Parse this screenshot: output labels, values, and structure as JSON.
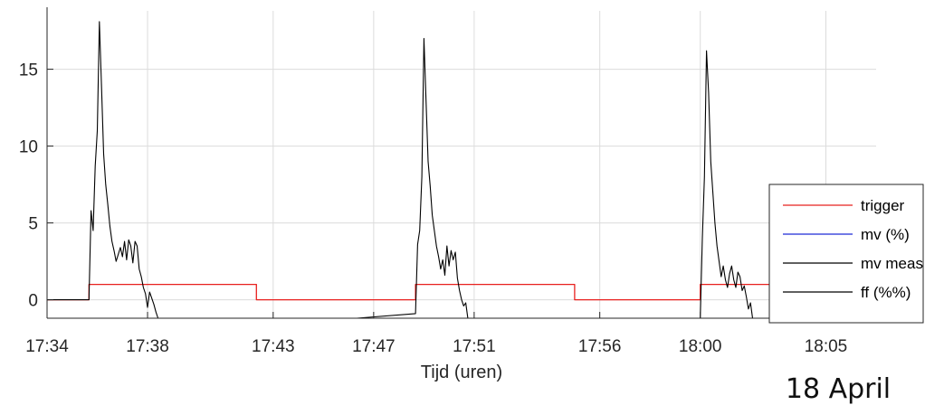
{
  "chart_data": {
    "type": "line",
    "title": "",
    "xlabel": "Tijd (uren)",
    "ylabel": "",
    "annotation": "18 April",
    "x_unit": "time HH:MM",
    "xlim": [
      "17:34",
      "18:07"
    ],
    "ylim": [
      -1.2,
      18.8
    ],
    "x_ticks": [
      "17:34",
      "17:38",
      "17:43",
      "17:47",
      "17:51",
      "17:56",
      "18:00",
      "18:05"
    ],
    "y_ticks": [
      0,
      5,
      10,
      15
    ],
    "grid": true,
    "legend_position": "right",
    "colors": {
      "trigger": "#e8201e",
      "mv": "#1f2bd8",
      "mv_meas": "#000000",
      "ff": "#000000"
    },
    "series": [
      {
        "name": "trigger",
        "points": [
          [
            "17:34",
            0
          ],
          [
            "17:35:40",
            0
          ],
          [
            "17:35:40",
            1
          ],
          [
            "17:42:20",
            1
          ],
          [
            "17:42:20",
            0
          ],
          [
            "17:48:40",
            0
          ],
          [
            "17:48:40",
            1
          ],
          [
            "17:55:00",
            1
          ],
          [
            "17:55:00",
            0
          ],
          [
            "18:00:00",
            0
          ],
          [
            "18:00:00",
            1
          ],
          [
            "18:07",
            1
          ]
        ]
      },
      {
        "name": "mv (%)",
        "points": []
      },
      {
        "name": "mv meas",
        "points": [
          [
            "17:34",
            0
          ],
          [
            "17:35:40",
            0
          ],
          [
            "17:35:45",
            5.8
          ],
          [
            "17:35:50",
            4.5
          ],
          [
            "17:35:55",
            8.7
          ],
          [
            "17:36:00",
            11.0
          ],
          [
            "17:36:05",
            18.1
          ],
          [
            "17:36:10",
            14.0
          ],
          [
            "17:36:15",
            9.5
          ],
          [
            "17:36:20",
            7.5
          ],
          [
            "17:36:25",
            6.2
          ],
          [
            "17:36:30",
            4.8
          ],
          [
            "17:36:35",
            3.8
          ],
          [
            "17:36:40",
            3.2
          ],
          [
            "17:36:45",
            2.5
          ],
          [
            "17:36:55",
            3.4
          ],
          [
            "17:37:00",
            2.8
          ],
          [
            "17:37:05",
            3.8
          ],
          [
            "17:37:10",
            2.6
          ],
          [
            "17:37:15",
            3.9
          ],
          [
            "17:37:20",
            3.5
          ],
          [
            "17:37:25",
            2.4
          ],
          [
            "17:37:30",
            3.8
          ],
          [
            "17:37:35",
            3.5
          ],
          [
            "17:37:40",
            2.0
          ],
          [
            "17:37:45",
            1.5
          ],
          [
            "17:37:50",
            0.8
          ],
          [
            "17:37:55",
            0.4
          ],
          [
            "17:38:00",
            -0.5
          ],
          [
            "17:38:05",
            0.5
          ],
          [
            "17:38:10",
            0.1
          ],
          [
            "17:38:15",
            -0.3
          ],
          [
            "17:38:20",
            -0.8
          ],
          [
            "17:38:25",
            -1.2
          ]
        ]
      },
      {
        "name": "ff (%%)",
        "points": [
          [
            "17:46:20",
            -1.2
          ],
          [
            "17:48:40",
            -0.9
          ],
          [
            "17:48:45",
            3.6
          ],
          [
            "17:48:50",
            4.5
          ],
          [
            "17:48:55",
            8.0
          ],
          [
            "17:49:00",
            17.0
          ],
          [
            "17:49:05",
            13.0
          ],
          [
            "17:49:10",
            9.0
          ],
          [
            "17:49:15",
            7.4
          ],
          [
            "17:49:20",
            5.5
          ],
          [
            "17:49:25",
            4.5
          ],
          [
            "17:49:30",
            3.5
          ],
          [
            "17:49:35",
            2.8
          ],
          [
            "17:49:40",
            2.0
          ],
          [
            "17:49:45",
            2.6
          ],
          [
            "17:49:50",
            1.6
          ],
          [
            "17:49:55",
            3.5
          ],
          [
            "17:50:00",
            2.2
          ],
          [
            "17:50:05",
            3.2
          ],
          [
            "17:50:10",
            2.6
          ],
          [
            "17:50:15",
            3.1
          ],
          [
            "17:50:20",
            1.4
          ],
          [
            "17:50:25",
            0.6
          ],
          [
            "17:50:30",
            0.0
          ],
          [
            "17:50:35",
            -0.4
          ],
          [
            "17:50:40",
            -0.2
          ],
          [
            "17:50:45",
            -1.2
          ],
          [
            "18:00:00",
            -1.2
          ],
          [
            "18:00:05",
            4.0
          ],
          [
            "18:00:10",
            8.0
          ],
          [
            "18:00:15",
            16.2
          ],
          [
            "18:00:20",
            13.5
          ],
          [
            "18:00:25",
            9.0
          ],
          [
            "18:00:30",
            7.0
          ],
          [
            "18:00:35",
            5.0
          ],
          [
            "18:00:40",
            3.5
          ],
          [
            "18:00:45",
            2.5
          ],
          [
            "18:00:50",
            1.5
          ],
          [
            "18:00:55",
            2.2
          ],
          [
            "18:01:00",
            1.3
          ],
          [
            "18:01:05",
            0.8
          ],
          [
            "18:01:10",
            1.7
          ],
          [
            "18:01:15",
            2.2
          ],
          [
            "18:01:20",
            1.3
          ],
          [
            "18:01:25",
            0.8
          ],
          [
            "18:01:30",
            1.8
          ],
          [
            "18:01:35",
            1.5
          ],
          [
            "18:01:40",
            0.6
          ],
          [
            "18:01:45",
            0.9
          ],
          [
            "18:01:50",
            0.2
          ],
          [
            "18:01:55",
            -0.6
          ],
          [
            "18:02:00",
            -0.2
          ],
          [
            "18:02:05",
            -1.2
          ]
        ]
      }
    ]
  }
}
